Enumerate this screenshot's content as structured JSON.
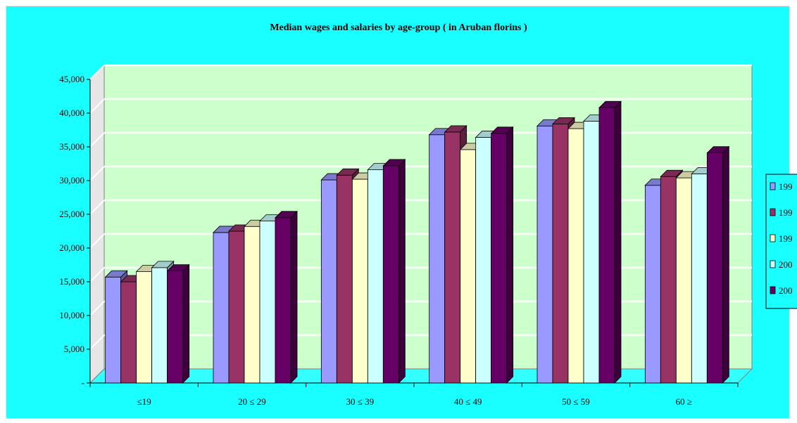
{
  "chart_data": {
    "type": "bar",
    "title": "Median wages and salaries by age-group ( in Aruban florins )",
    "categories": [
      "≤19",
      "20 ≤ 29",
      "30 ≤ 39",
      "40 ≤ 49",
      "50 ≤ 59",
      "60 ≥"
    ],
    "series": [
      {
        "name": "199",
        "color": "#9999ff",
        "values": [
          15700,
          22300,
          30100,
          36800,
          38100,
          29300
        ]
      },
      {
        "name": "199",
        "color": "#993366",
        "values": [
          15000,
          22500,
          30800,
          37200,
          38400,
          30600
        ]
      },
      {
        "name": "199",
        "color": "#ffffcc",
        "values": [
          16500,
          23200,
          30200,
          34600,
          37700,
          30400
        ]
      },
      {
        "name": "200",
        "color": "#ccffff",
        "values": [
          17100,
          24000,
          31600,
          36400,
          38800,
          31000
        ]
      },
      {
        "name": "200",
        "color": "#660066",
        "values": [
          16600,
          24500,
          32200,
          37000,
          40800,
          34100
        ]
      }
    ],
    "yticks": [
      "-",
      "5,000",
      "10,000",
      "15,000",
      "20,000",
      "25,000",
      "30,000",
      "35,000",
      "40,000",
      "45,000"
    ],
    "ylim": [
      0,
      45000
    ],
    "grid": true,
    "legend_position": "right",
    "colors": {
      "background": "#19ffff",
      "plot_wall": "#ccffcc",
      "floor": "#33ffff",
      "gridline": "#ffffff"
    }
  }
}
